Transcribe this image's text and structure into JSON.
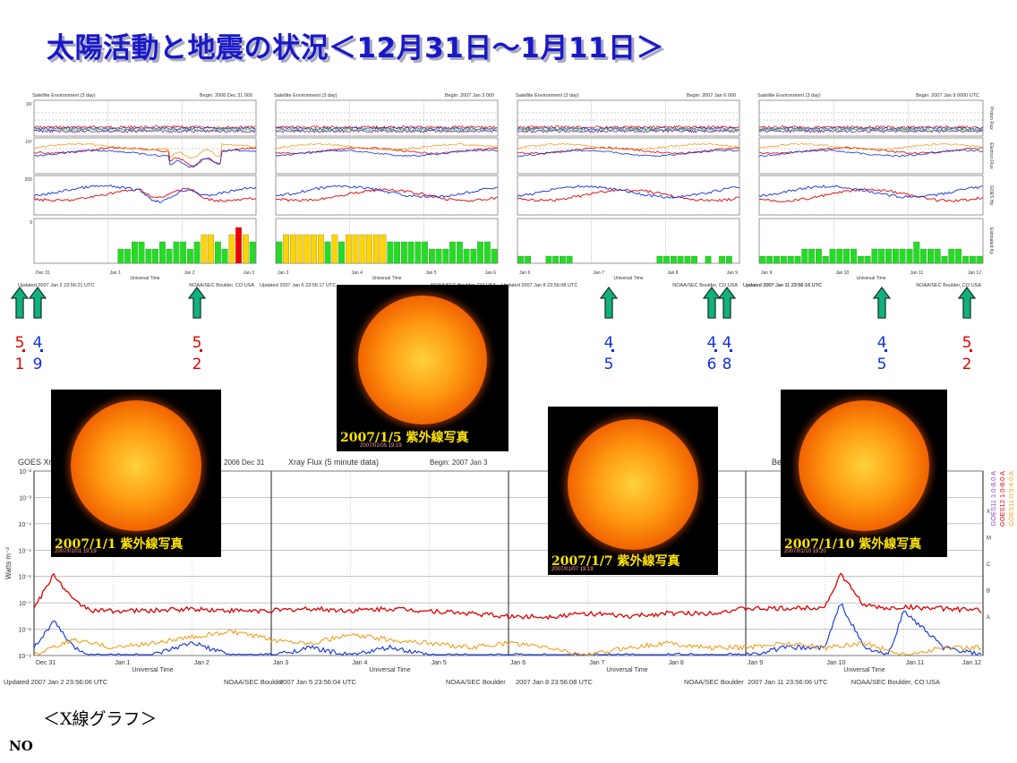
{
  "title": "太陽活動と地震の状況＜12月31日～1月11日＞",
  "colors": {
    "title": "#1818c8",
    "red": "#e00000",
    "blue": "#1030e0",
    "green": "#22dd22",
    "yellow": "#ffd400",
    "kp_red": "#ee0000",
    "arrow": "#10b080"
  },
  "env_panels": [
    {
      "header_left": "Satellite Environment (3 day)",
      "header_right": "Begin:  2006 Dec 31 000",
      "days": [
        "Dec 31",
        "Jan 1",
        "Jan 2",
        "Jan 3"
      ],
      "footer_left": "Updated 2007 Jan  2 23:56:21 UTC",
      "footer_right": "NOAA/SEC Boulder, CO USA",
      "xlabel": "Universal Time",
      "kp": [
        0,
        0,
        0,
        0,
        0,
        0,
        0,
        0,
        0,
        0,
        0,
        0,
        2,
        2,
        3,
        3,
        2,
        2,
        3,
        2,
        3,
        3,
        2,
        3,
        4,
        4,
        3,
        2,
        4,
        5,
        4,
        3
      ],
      "left_ticks": [
        "10²",
        "10⁰",
        "200",
        "9",
        "0"
      ],
      "right_labels": [
        "Proton Flux",
        "Electron Flux",
        "GOES Hp",
        "Estimated Kp"
      ]
    },
    {
      "header_left": "Satellite Environment (3 day)",
      "header_right": "Begin:  2007 Jan 3 000",
      "days": [
        "Jan 3",
        "Jan 4",
        "Jan 5",
        "Jan 6"
      ],
      "footer_left": "",
      "footer_right": "NOAA/SEC Boulder, CO USA",
      "xlabel": "Universal Time",
      "kp": [
        3,
        4,
        4,
        4,
        4,
        4,
        4,
        3,
        4,
        3,
        4,
        4,
        4,
        4,
        4,
        4,
        3,
        3,
        3,
        3,
        3,
        3,
        2,
        2,
        2,
        3,
        3,
        2,
        2,
        3,
        3,
        2
      ],
      "left_ticks": [
        "",
        "",
        "",
        "",
        ""
      ],
      "right_labels": [
        "",
        "",
        "",
        ""
      ]
    },
    {
      "header_left": "Satellite Environment (3 day)",
      "header_right": "Begin:  2007 Jan 6 000",
      "days": [
        "Jan 6",
        "Jan 7",
        "Jan 8",
        "Jan 9"
      ],
      "footer_left": "",
      "footer_right": "NOAA/SEC Boulder, CO USA",
      "xlabel": "Universal Time",
      "kp": [
        1,
        1,
        0,
        0,
        1,
        1,
        1,
        1,
        0,
        0,
        0,
        0,
        0,
        0,
        0,
        0,
        0,
        0,
        0,
        0,
        1,
        1,
        1,
        1,
        1,
        1,
        0,
        1,
        0,
        1,
        1,
        0
      ],
      "left_ticks": [
        "",
        "",
        "",
        "",
        ""
      ],
      "right_labels": [
        "",
        "",
        "",
        ""
      ]
    },
    {
      "header_left": "Satellite Environment (3 day)",
      "header_right": "Begin:  2007 Jan 9 0000 UTC",
      "days": [
        "Jan 9",
        "Jan 10",
        "Jan 11",
        "Jan 12"
      ],
      "footer_left": "Updated 2007 Jan 11 23:56:16 UTC",
      "footer_right": "NOAA/SEC Boulder, CO USA",
      "xlabel": "Universal Time",
      "kp": [
        1,
        1,
        1,
        1,
        1,
        1,
        2,
        2,
        2,
        1,
        2,
        2,
        2,
        2,
        1,
        1,
        2,
        2,
        2,
        2,
        2,
        2,
        3,
        2,
        2,
        2,
        1,
        2,
        2,
        1,
        1,
        1
      ],
      "left_ticks": [
        "",
        "",
        "",
        "",
        ""
      ],
      "right_labels": [
        "Proton Flux",
        "Electron Flux",
        "GOES Hp",
        "Estimated Kp"
      ]
    }
  ],
  "env_footer_mid": [
    {
      "text": "Updated 2007 Jan  5 23:56:17 UTC"
    },
    {
      "text": "Updated 2007 Jan  8 23:56:08 UTC"
    },
    {
      "text": "Updated 2007 Jan 11 23:56:16 UTC"
    }
  ],
  "earthquakes": [
    {
      "top": "5",
      "bottom": "1",
      "color": "red"
    },
    {
      "top": "4",
      "bottom": "9",
      "color": "blue"
    },
    {
      "top": "5",
      "bottom": "2",
      "color": "red"
    },
    {
      "top": "4",
      "bottom": "5",
      "color": "blue"
    },
    {
      "top": "4",
      "bottom": "6",
      "color": "blue"
    },
    {
      "top": "4",
      "bottom": "8",
      "color": "blue"
    },
    {
      "top": "4",
      "bottom": "5",
      "color": "blue"
    },
    {
      "top": "5",
      "bottom": "2",
      "color": "red"
    }
  ],
  "suns": [
    {
      "caption": "2007/1/1  紫外線写真",
      "stamp": "2007/01/01  19:19"
    },
    {
      "caption": "2007/1/5  紫外線写真",
      "stamp": "2007/01/05  19:19"
    },
    {
      "caption": "2007/1/7  紫外線写真",
      "stamp": "2007/01/07  19:19"
    },
    {
      "caption": "2007/1/10  紫外線写真",
      "stamp": "2007/01/10  19:20"
    }
  ],
  "chart_data": {
    "type": "line",
    "title": "GOES Xray Flux (5 minute data)",
    "ylabel": "Watts m⁻²",
    "yscale": "log",
    "ylim": [
      1e-09,
      0.01
    ],
    "y_ticks": [
      "10⁻²",
      "10⁻³",
      "10⁻⁴",
      "10⁻⁵",
      "10⁻⁶",
      "10⁻⁷",
      "10⁻⁸",
      "10⁻⁹"
    ],
    "flare_classes": [
      "X",
      "M",
      "C",
      "B",
      "A"
    ],
    "x_ticks": [
      "Dec 31",
      "Jan 1",
      "Jan 2",
      "Jan 3",
      "Jan 4",
      "Jan 5",
      "Jan 6",
      "Jan 7",
      "Jan 8",
      "Jan 9",
      "Jan 10",
      "Jan 11",
      "Jan 12"
    ],
    "xlabel": "Universal Time",
    "panel_headers": [
      "GOES Xray Flux (5 minute data)",
      "Xray Flux (5 minute data)",
      "Begin:  2007 Jan 3",
      "",
      "Begin:  2007 Jan 9 0000 UTC",
      "2006 Dec 31"
    ],
    "legend": [
      "GOES11 1.0-8.0 A",
      "GOES12 1.0-8.0 A",
      "GOES11 0.5-4.0 A",
      "GOES12 0.5-4.0 A"
    ],
    "footers": [
      "Updated 2007 Jan  2 23:56:06 UTC",
      "NOAA/SEC Boulder",
      "2007 Jan  5 23:56:04 UTC",
      "NOAA/SEC Boulder",
      "2007 Jan  8 23:56:08 UTC",
      "NOAA/SEC Boulder",
      "2007 Jan 11 23:56:06 UTC",
      "NOAA/SEC Boulder, CO USA"
    ],
    "series": [
      {
        "name": "GOES12 1.0-8.0 A",
        "color": "#e00000",
        "x": [
          0,
          0.25,
          0.5,
          0.75,
          1,
          1.5,
          2,
          2.5,
          3,
          3.5,
          4,
          4.5,
          5,
          5.5,
          6,
          6.5,
          7,
          7.5,
          8,
          8.5,
          9,
          9.5,
          10,
          10.2,
          10.5,
          10.8,
          11,
          11.5,
          12
        ],
        "y": [
          6e-08,
          1.2e-06,
          1.2e-07,
          5e-08,
          5e-08,
          5e-08,
          6e-08,
          5e-08,
          5e-08,
          6e-08,
          5e-08,
          6e-08,
          5e-08,
          4e-08,
          3e-08,
          3e-08,
          4e-08,
          3e-08,
          4e-08,
          4e-08,
          6e-08,
          6e-08,
          7e-08,
          1.2e-06,
          8e-08,
          6e-08,
          7e-08,
          6e-08,
          5e-08
        ]
      },
      {
        "name": "GOES12 0.5-4.0 A",
        "color": "#1030e0",
        "x": [
          0,
          0.25,
          0.5,
          0.75,
          1,
          1.5,
          2,
          2.5,
          3,
          3.5,
          4,
          4.5,
          5,
          5.5,
          6,
          6.5,
          7,
          7.5,
          8,
          8.5,
          9,
          9.5,
          10,
          10.2,
          10.5,
          10.8,
          11,
          11.5,
          12
        ],
        "y": [
          2e-09,
          2e-08,
          2e-09,
          1e-09,
          1e-09,
          1e-09,
          3e-09,
          1e-09,
          1e-09,
          2e-09,
          1e-09,
          2e-09,
          1e-09,
          1e-09,
          1e-09,
          1e-09,
          1e-09,
          1e-09,
          1e-09,
          1e-09,
          1e-09,
          2e-09,
          2e-09,
          1e-07,
          2e-09,
          1e-09,
          5e-08,
          2e-09,
          1e-09
        ]
      },
      {
        "name": "GOES11 0.5-4.0 A",
        "color": "#f0a020",
        "x": [
          0,
          0.5,
          1,
          1.5,
          2,
          2.5,
          3,
          3.5,
          4,
          4.5,
          5,
          5.5,
          6,
          6.5,
          7,
          7.5,
          8,
          8.5,
          9,
          9.5,
          10,
          10.5,
          11,
          11.5,
          12
        ],
        "y": [
          1e-09,
          4e-09,
          2e-09,
          3e-09,
          5e-09,
          8e-09,
          4e-09,
          3e-09,
          6e-09,
          4e-09,
          3e-09,
          2e-09,
          3e-09,
          2e-09,
          1e-09,
          2e-09,
          3e-09,
          2e-09,
          2e-09,
          3e-09,
          2e-09,
          3e-09,
          1e-09,
          2e-09,
          2e-09
        ]
      }
    ]
  },
  "xray_label": "＜X線グラフ＞",
  "no_label": "NO"
}
